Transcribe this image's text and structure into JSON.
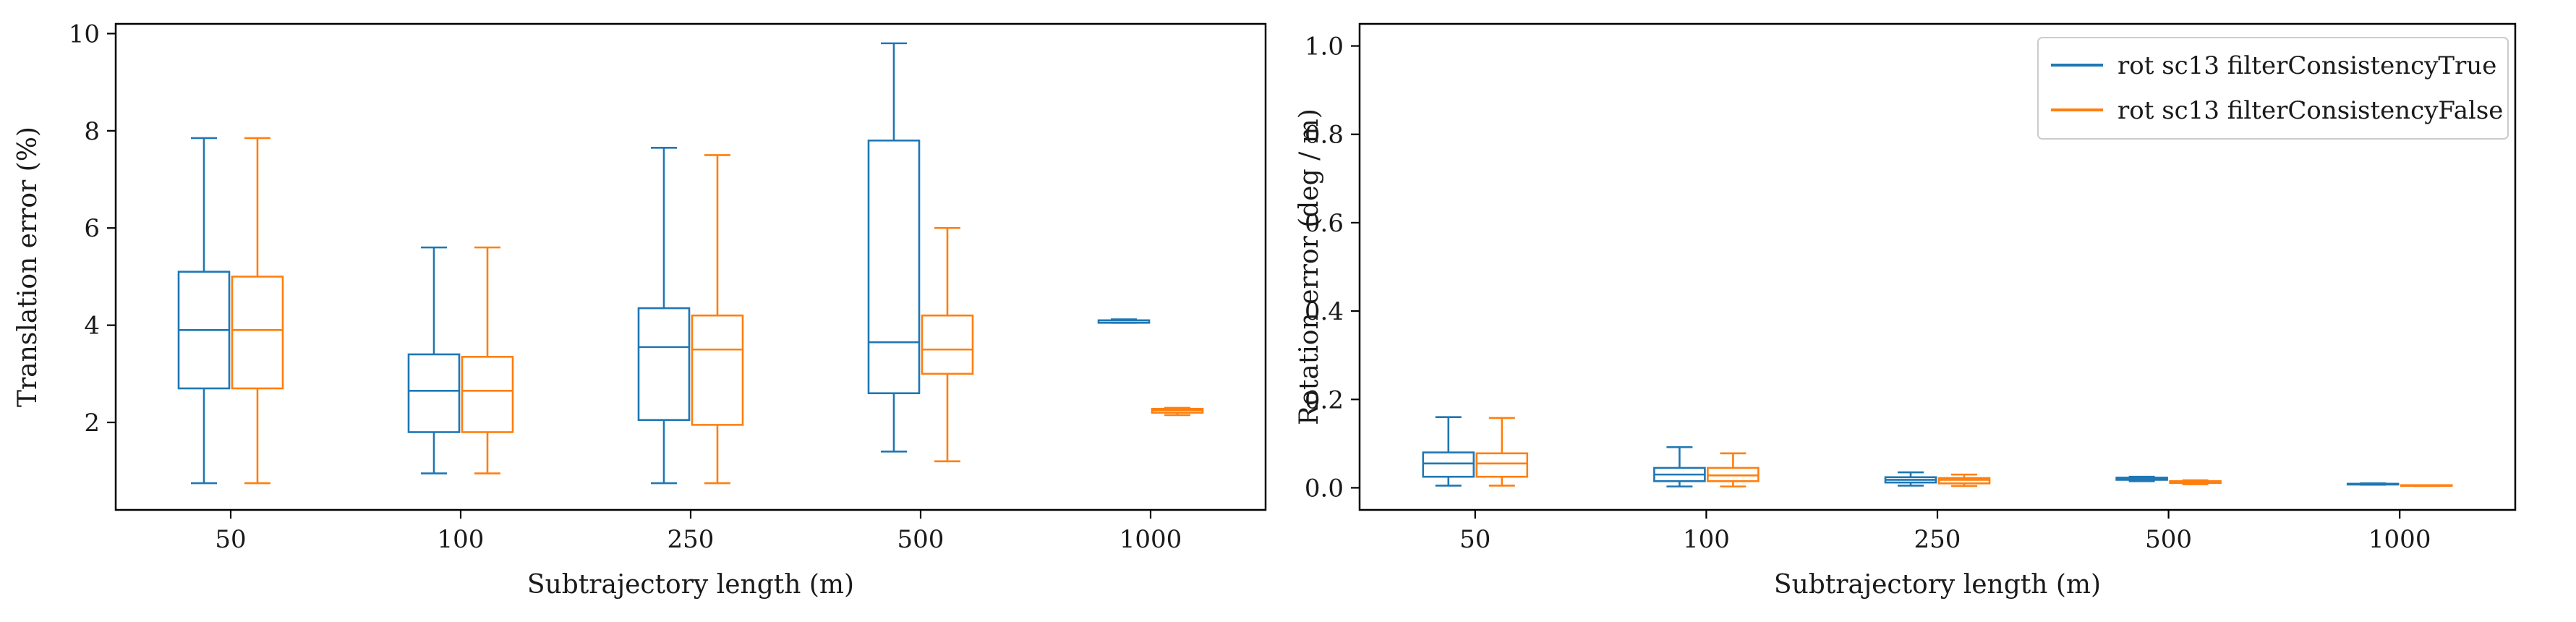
{
  "chart_data": [
    {
      "type": "box",
      "xlabel": "Subtrajectory length (m)",
      "ylabel": "Translation error (%)",
      "categories": [
        "50",
        "100",
        "250",
        "500",
        "1000"
      ],
      "ylim": [
        0.2,
        10.2
      ],
      "yticks": [
        2,
        4,
        6,
        8,
        10
      ],
      "grid": false,
      "series": [
        {
          "name": "rot sc13 filterConsistencyTrue",
          "color": "#1f77b4",
          "boxes": [
            {
              "min": 0.75,
              "q1": 2.7,
              "median": 3.9,
              "q3": 5.1,
              "max": 7.85
            },
            {
              "min": 0.95,
              "q1": 1.8,
              "median": 2.65,
              "q3": 3.4,
              "max": 5.6
            },
            {
              "min": 0.75,
              "q1": 2.05,
              "median": 3.55,
              "q3": 4.35,
              "max": 7.65
            },
            {
              "min": 1.4,
              "q1": 2.6,
              "median": 3.65,
              "q3": 7.8,
              "max": 9.8
            },
            {
              "min": 4.05,
              "q1": 4.05,
              "median": 4.1,
              "q3": 4.1,
              "max": 4.12
            }
          ]
        },
        {
          "name": "rot sc13 filterConsistencyFalse",
          "color": "#ff7f0e",
          "boxes": [
            {
              "min": 0.75,
              "q1": 2.7,
              "median": 3.9,
              "q3": 5.0,
              "max": 7.85
            },
            {
              "min": 0.95,
              "q1": 1.8,
              "median": 2.65,
              "q3": 3.35,
              "max": 5.6
            },
            {
              "min": 0.75,
              "q1": 1.95,
              "median": 3.5,
              "q3": 4.2,
              "max": 7.5
            },
            {
              "min": 1.2,
              "q1": 3.0,
              "median": 3.5,
              "q3": 4.2,
              "max": 6.0
            },
            {
              "min": 2.15,
              "q1": 2.2,
              "median": 2.25,
              "q3": 2.28,
              "max": 2.3
            }
          ]
        }
      ]
    },
    {
      "type": "box",
      "xlabel": "Subtrajectory length (m)",
      "ylabel": "Rotation error (deg / m)",
      "categories": [
        "50",
        "100",
        "250",
        "500",
        "1000"
      ],
      "ylim": [
        -0.05,
        1.05
      ],
      "yticks": [
        0.0,
        0.2,
        0.4,
        0.6,
        0.8,
        1.0
      ],
      "grid": false,
      "legend_position": "top-right",
      "legend": [
        "rot sc13 filterConsistencyTrue",
        "rot sc13 filterConsistencyFalse"
      ],
      "series": [
        {
          "name": "rot sc13 filterConsistencyTrue",
          "color": "#1f77b4",
          "boxes": [
            {
              "min": 0.005,
              "q1": 0.025,
              "median": 0.055,
              "q3": 0.08,
              "max": 0.16
            },
            {
              "min": 0.003,
              "q1": 0.015,
              "median": 0.03,
              "q3": 0.045,
              "max": 0.092
            },
            {
              "min": 0.005,
              "q1": 0.012,
              "median": 0.018,
              "q3": 0.024,
              "max": 0.035
            },
            {
              "min": 0.015,
              "q1": 0.018,
              "median": 0.02,
              "q3": 0.023,
              "max": 0.025
            },
            {
              "min": 0.007,
              "q1": 0.008,
              "median": 0.009,
              "q3": 0.009,
              "max": 0.01
            }
          ]
        },
        {
          "name": "rot sc13 filterConsistencyFalse",
          "color": "#ff7f0e",
          "boxes": [
            {
              "min": 0.005,
              "q1": 0.025,
              "median": 0.055,
              "q3": 0.078,
              "max": 0.158
            },
            {
              "min": 0.003,
              "q1": 0.015,
              "median": 0.028,
              "q3": 0.045,
              "max": 0.078
            },
            {
              "min": 0.004,
              "q1": 0.01,
              "median": 0.018,
              "q3": 0.022,
              "max": 0.03
            },
            {
              "min": 0.008,
              "q1": 0.011,
              "median": 0.013,
              "q3": 0.015,
              "max": 0.017
            },
            {
              "min": 0.004,
              "q1": 0.005,
              "median": 0.005,
              "q3": 0.006,
              "max": 0.006
            }
          ]
        }
      ]
    }
  ]
}
